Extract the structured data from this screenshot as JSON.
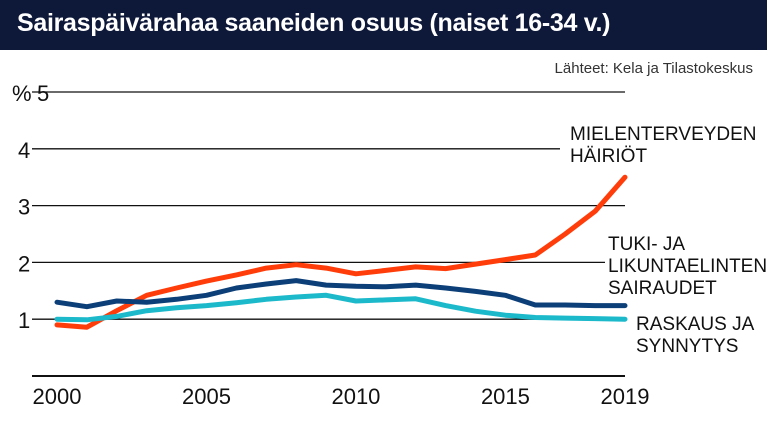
{
  "header": {
    "title": "Sairaspäivärahaa saaneiden osuus (naiset 16-34 v.)",
    "source": "Lähteet: Kela ja Tilastokeskus"
  },
  "chart_data": {
    "type": "line",
    "title": "Sairaspäivärahaa saaneiden osuus (naiset 16-34 v.)",
    "ylabel": "%",
    "ylim": [
      0,
      5
    ],
    "yticks": [
      1,
      2,
      3,
      4,
      5
    ],
    "xlim": [
      2000,
      2019
    ],
    "xticks": [
      2000,
      2005,
      2010,
      2015,
      2019
    ],
    "grid": true,
    "x": [
      2000,
      2001,
      2002,
      2003,
      2004,
      2005,
      2006,
      2007,
      2008,
      2009,
      2010,
      2011,
      2012,
      2013,
      2014,
      2015,
      2016,
      2017,
      2018,
      2019
    ],
    "series": [
      {
        "name": "MIELENTERVEYDEN HÄIRIÖT",
        "label_lines": [
          "MIELENTERVEYDEN",
          "HÄIRIÖT"
        ],
        "color": "#ff3d0a",
        "values": [
          0.9,
          0.86,
          1.15,
          1.42,
          1.55,
          1.67,
          1.78,
          1.9,
          1.96,
          1.9,
          1.8,
          1.86,
          1.92,
          1.89,
          1.97,
          2.05,
          2.13,
          2.5,
          2.9,
          3.5
        ]
      },
      {
        "name": "TUKI- JA LIKUNTAELINTEN SAIRAUDET",
        "label_lines": [
          "TUKI- JA",
          "LIKUNTAELINTEN",
          "SAIRAUDET"
        ],
        "color": "#0c3f78",
        "values": [
          1.3,
          1.22,
          1.32,
          1.3,
          1.35,
          1.42,
          1.55,
          1.62,
          1.68,
          1.6,
          1.58,
          1.57,
          1.6,
          1.55,
          1.49,
          1.42,
          1.25,
          1.25,
          1.24,
          1.24
        ]
      },
      {
        "name": "RASKAUS JA SYNNYTYS",
        "label_lines": [
          "RASKAUS JA",
          "SYNNYTYS"
        ],
        "color": "#1cb9cb",
        "values": [
          1.0,
          0.99,
          1.05,
          1.15,
          1.2,
          1.24,
          1.29,
          1.35,
          1.39,
          1.42,
          1.32,
          1.34,
          1.36,
          1.24,
          1.14,
          1.07,
          1.03,
          1.02,
          1.01,
          1.0
        ]
      }
    ]
  }
}
